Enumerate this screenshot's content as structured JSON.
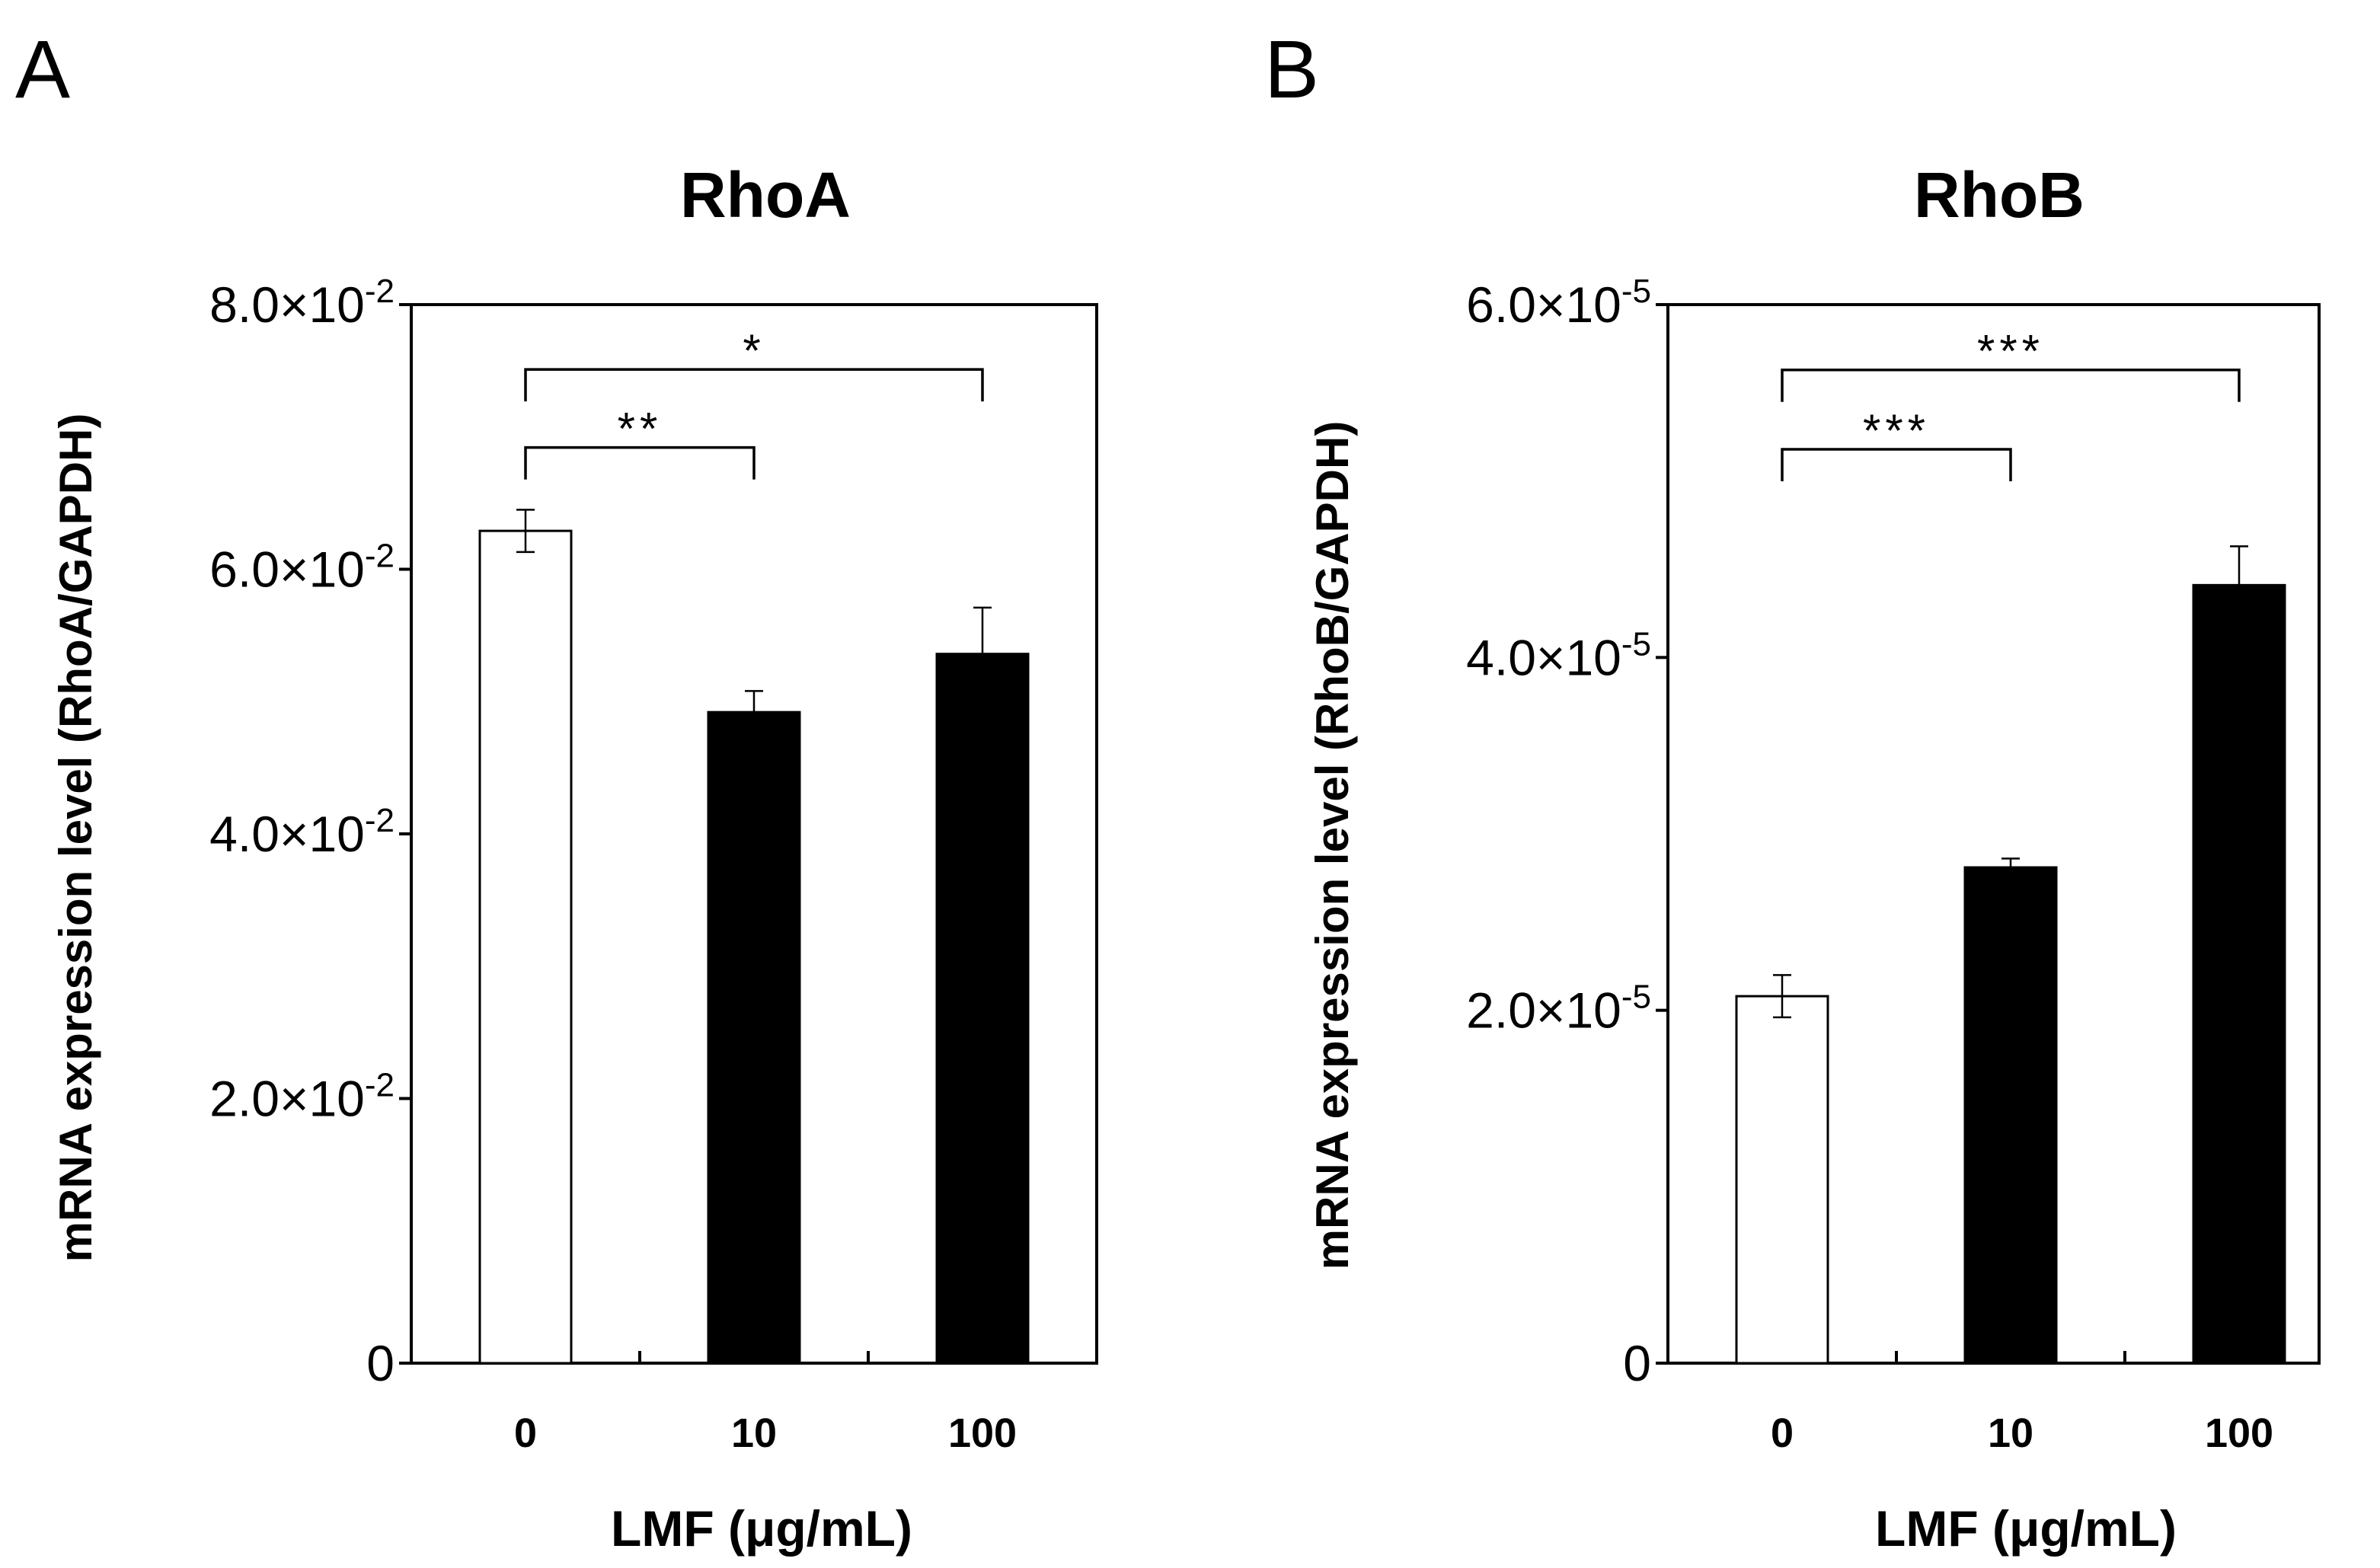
{
  "chart_data": [
    {
      "type": "bar",
      "panel_label": "A",
      "title": "RhoA",
      "xlabel": "LMF (μg/mL)",
      "ylabel": "mRNA expression level (RhoA/GAPDH)",
      "categories": [
        "0",
        "10",
        "100"
      ],
      "values": [
        0.0629,
        0.0492,
        0.0536
      ],
      "errors": [
        0.0016,
        0.0016,
        0.0035
      ],
      "bar_colors": [
        "#ffffff",
        "#000000",
        "#000000"
      ],
      "ylim": [
        0,
        0.08
      ],
      "yticks": [
        {
          "value": 0,
          "mant": "0",
          "exp": ""
        },
        {
          "value": 0.02,
          "mant": "2.0",
          "exp": "-2"
        },
        {
          "value": 0.04,
          "mant": "4.0",
          "exp": "-2"
        },
        {
          "value": 0.06,
          "mant": "6.0",
          "exp": "-2"
        },
        {
          "value": 0.08,
          "mant": "8.0",
          "exp": "-2"
        }
      ],
      "significance": [
        {
          "from": 0,
          "to": 2,
          "label": "*",
          "level": 0.0751,
          "drop": 0.0751
        },
        {
          "from": 0,
          "to": 1,
          "label": "**",
          "level": 0.0692,
          "drop": 0.0692
        }
      ]
    },
    {
      "type": "bar",
      "panel_label": "B",
      "title": "RhoB",
      "xlabel": "LMF (μg/mL)",
      "ylabel": "mRNA expression level (RhoB/GAPDH)",
      "categories": [
        "0",
        "10",
        "100"
      ],
      "values": [
        2.08e-05,
        2.81e-05,
        4.41e-05
      ],
      "errors": [
        1.2e-06,
        5e-07,
        2.2e-06
      ],
      "bar_colors": [
        "#ffffff",
        "#000000",
        "#000000"
      ],
      "ylim": [
        0,
        6e-05
      ],
      "yticks": [
        {
          "value": 0,
          "mant": "0",
          "exp": ""
        },
        {
          "value": 2e-05,
          "mant": "2.0",
          "exp": "-5"
        },
        {
          "value": 4e-05,
          "mant": "4.0",
          "exp": "-5"
        },
        {
          "value": 6e-05,
          "mant": "6.0",
          "exp": "-5"
        }
      ],
      "significance": [
        {
          "from": 0,
          "to": 2,
          "label": "***",
          "level": 5.63e-05,
          "drop": 5.63e-05
        },
        {
          "from": 0,
          "to": 1,
          "label": "***",
          "level": 5.18e-05,
          "drop": 5.18e-05
        }
      ]
    }
  ]
}
